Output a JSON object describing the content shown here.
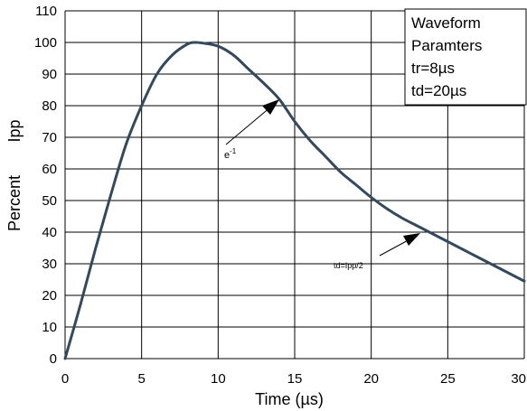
{
  "chart_data": {
    "type": "line",
    "title": "",
    "xlabel": "Time (µs)",
    "ylabel": "Percent",
    "ylabel_sub": "Ipp",
    "xlim": [
      0,
      30
    ],
    "ylim": [
      0,
      110
    ],
    "x_ticks": [
      0,
      5,
      10,
      15,
      20,
      25,
      30
    ],
    "y_ticks": [
      0,
      10,
      20,
      30,
      40,
      50,
      60,
      70,
      80,
      90,
      100,
      110
    ],
    "grid": true,
    "legend": {
      "placement": "top-right",
      "lines": [
        "Waveform",
        "Paramters",
        "tr=8µs",
        "td=20µs"
      ]
    },
    "series": [
      {
        "color": "#34495e",
        "x": [
          0,
          1,
          2,
          3,
          4,
          5,
          6,
          7,
          8,
          8.5,
          9,
          10,
          11,
          12,
          13,
          14,
          15,
          16,
          17,
          18,
          19,
          20,
          21,
          22,
          23,
          24,
          25,
          26,
          27,
          28,
          29,
          30
        ],
        "y": [
          0,
          17,
          35,
          52,
          68,
          80,
          90,
          96,
          99.5,
          100,
          99.8,
          98.8,
          96,
          91.5,
          87,
          82,
          75,
          69,
          64,
          59,
          55,
          51,
          47.5,
          44.5,
          42,
          39.5,
          37,
          34.5,
          32,
          29.5,
          27,
          24.5
        ]
      }
    ],
    "annotations": [
      {
        "text": "e",
        "superscript": "-1",
        "point": [
          14,
          82
        ]
      },
      {
        "text": "td=Ipp/2",
        "point": [
          23.5,
          40.5
        ]
      }
    ]
  }
}
